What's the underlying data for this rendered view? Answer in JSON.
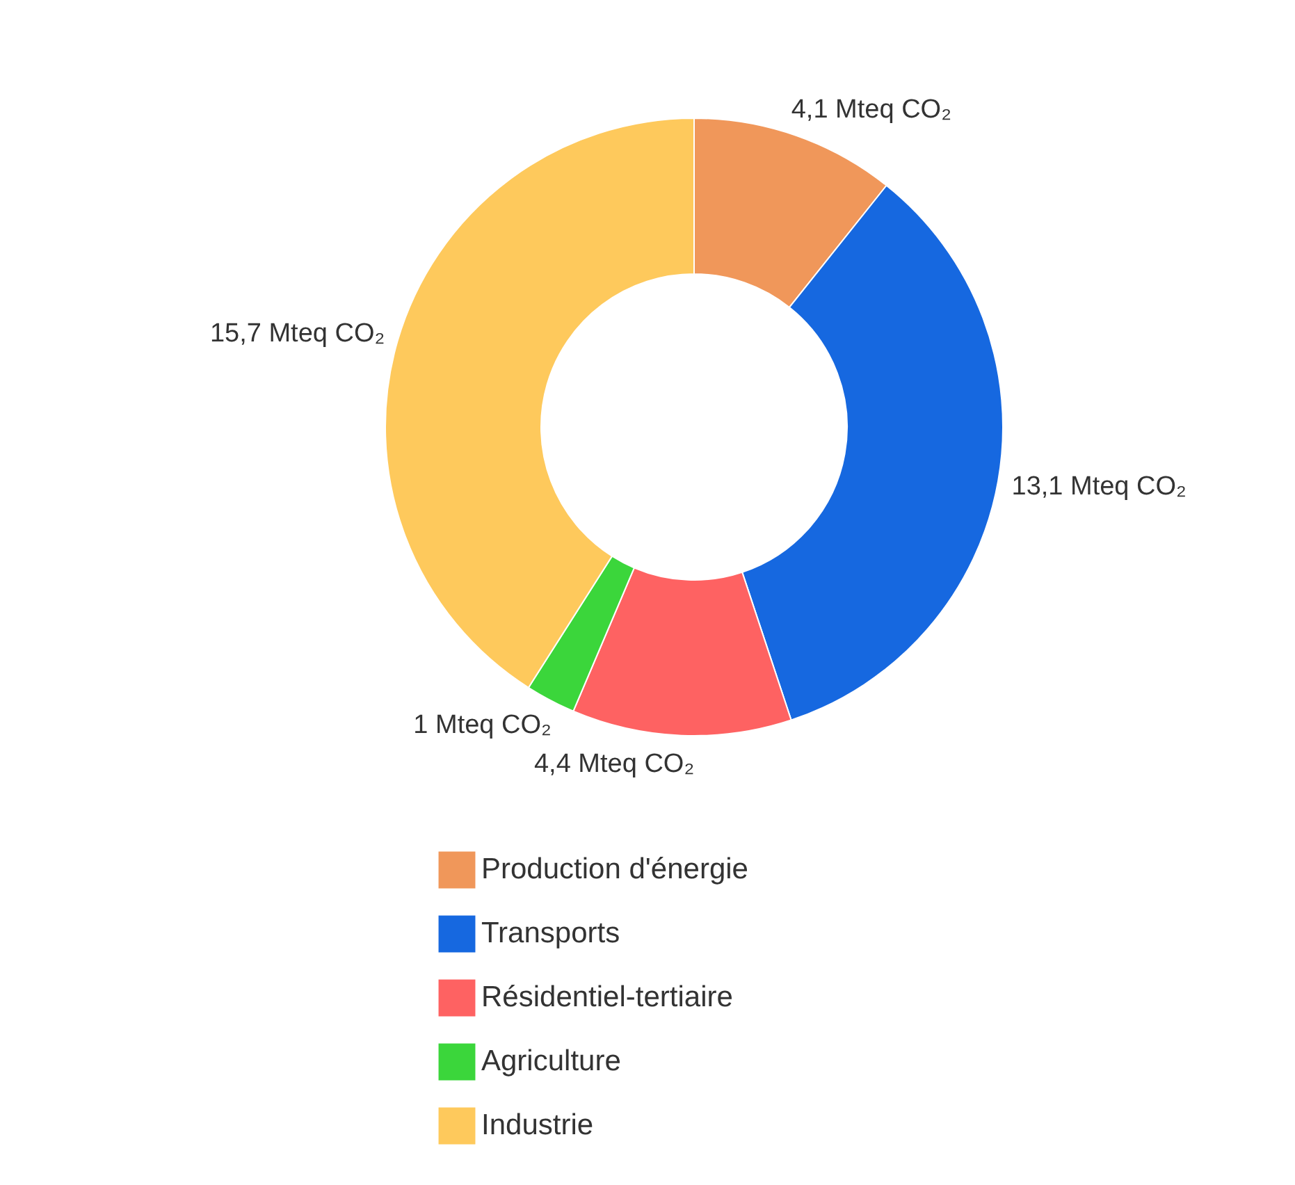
{
  "chart_data": {
    "type": "donut",
    "categories": [
      "Production d'énergie",
      "Transports",
      "Résidentiel-tertiaire",
      "Agriculture",
      "Industrie"
    ],
    "values": [
      4.1,
      13.1,
      4.4,
      1,
      15.7
    ],
    "colors": [
      "#f0975a",
      "#1668e0",
      "#fe6262",
      "#3bd63b",
      "#fec95c"
    ],
    "value_labels": [
      "4,1 Mteq CO₂",
      "13,1 Mteq CO₂",
      "4,4 Mteq CO₂",
      "1 Mteq CO₂",
      "15,7 Mteq CO₂"
    ],
    "legend": "bottom"
  }
}
